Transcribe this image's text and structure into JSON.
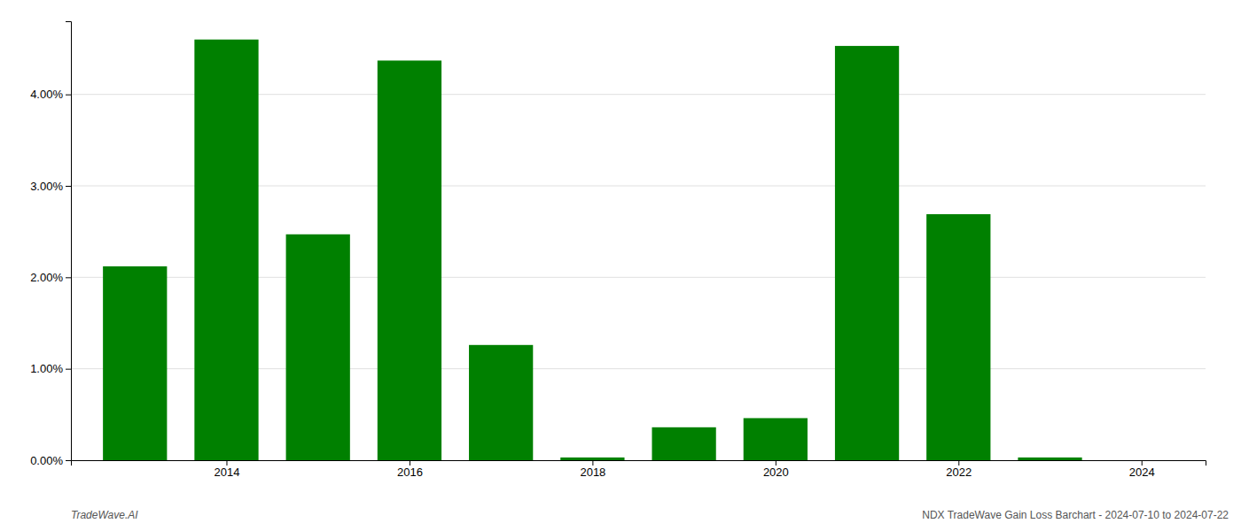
{
  "chart_data": {
    "type": "bar",
    "x": [
      2013,
      2014,
      2015,
      2016,
      2017,
      2018,
      2019,
      2020,
      2021,
      2022,
      2023,
      2024
    ],
    "values": [
      2.12,
      4.6,
      2.47,
      4.37,
      1.26,
      0.03,
      0.36,
      0.46,
      4.53,
      2.69,
      0.03,
      0.0
    ],
    "color": "#008000",
    "xlim": [
      2012.3,
      2024.7
    ],
    "xticks": [
      2014,
      2016,
      2018,
      2020,
      2022,
      2024
    ],
    "ylim": [
      0,
      4.8
    ],
    "yticks": [
      {
        "value": 0,
        "label": "0.00%"
      },
      {
        "value": 1,
        "label": "1.00%"
      },
      {
        "value": 2,
        "label": "2.00%"
      },
      {
        "value": 3,
        "label": "3.00%"
      },
      {
        "value": 4,
        "label": "4.00%"
      }
    ],
    "grid": true,
    "annotations": [
      "TradeWave.AI",
      "NDX TradeWave Gain Loss Barchart - 2024-07-10 to 2024-07-22"
    ]
  }
}
